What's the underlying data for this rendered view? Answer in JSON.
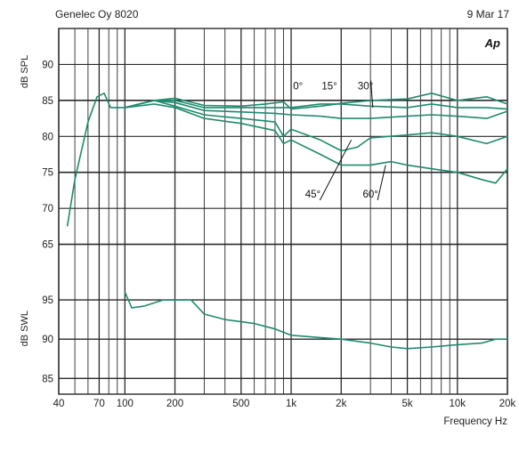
{
  "header": {
    "left": "Genelec Oy 8020",
    "right": "9 Mar 17",
    "logo": "Ap"
  },
  "colors": {
    "curve": "#1f8a6e",
    "grid": "#2a2a2a",
    "paper": "#ffffff"
  },
  "chart_data": {
    "type": "line",
    "xlabel": "Frequency Hz",
    "x_scale": "log",
    "xlim": [
      40,
      20000
    ],
    "x_ticks": [
      {
        "v": 40,
        "label": "40"
      },
      {
        "v": 70,
        "label": "70"
      },
      {
        "v": 100,
        "label": "100"
      },
      {
        "v": 200,
        "label": "200"
      },
      {
        "v": 500,
        "label": "500"
      },
      {
        "v": 1000,
        "label": "1k"
      },
      {
        "v": 2000,
        "label": "2k"
      },
      {
        "v": 5000,
        "label": "5k"
      },
      {
        "v": 10000,
        "label": "10k"
      },
      {
        "v": 20000,
        "label": "20k"
      }
    ],
    "grid_freqs": [
      40,
      50,
      60,
      70,
      80,
      90,
      100,
      200,
      300,
      400,
      500,
      600,
      700,
      800,
      900,
      1000,
      2000,
      3000,
      4000,
      5000,
      6000,
      7000,
      8000,
      9000,
      10000,
      20000
    ],
    "spl": {
      "ylabel": "dB SPL",
      "ylim": [
        60,
        95
      ],
      "y_ticks": [
        90,
        85,
        80,
        75,
        70,
        65
      ],
      "series": [
        {
          "name": "0°",
          "points": [
            [
              45,
              67.5
            ],
            [
              50,
              74
            ],
            [
              60,
              82
            ],
            [
              68,
              85.5
            ],
            [
              75,
              86
            ],
            [
              82,
              84
            ],
            [
              100,
              84
            ],
            [
              150,
              85
            ],
            [
              200,
              85.3
            ],
            [
              300,
              84.3
            ],
            [
              500,
              84.2
            ],
            [
              700,
              84.5
            ],
            [
              900,
              84.8
            ],
            [
              1000,
              83.8
            ],
            [
              1500,
              84.2
            ],
            [
              2000,
              84.6
            ],
            [
              3000,
              85
            ],
            [
              5000,
              85.2
            ],
            [
              7000,
              86
            ],
            [
              10000,
              85
            ],
            [
              15000,
              85.5
            ],
            [
              20000,
              84.5
            ]
          ]
        },
        {
          "name": "15°",
          "points": [
            [
              100,
              84
            ],
            [
              150,
              85
            ],
            [
              200,
              85
            ],
            [
              300,
              84
            ],
            [
              500,
              84
            ],
            [
              800,
              84
            ],
            [
              1000,
              84
            ],
            [
              1500,
              84.5
            ],
            [
              2000,
              84.5
            ],
            [
              3000,
              84.2
            ],
            [
              5000,
              84
            ],
            [
              7000,
              84.5
            ],
            [
              10000,
              84
            ],
            [
              15000,
              84
            ],
            [
              20000,
              83.8
            ]
          ]
        },
        {
          "name": "30°",
          "points": [
            [
              100,
              84
            ],
            [
              150,
              85
            ],
            [
              200,
              84.7
            ],
            [
              300,
              83.6
            ],
            [
              500,
              83.4
            ],
            [
              800,
              83.2
            ],
            [
              1000,
              83
            ],
            [
              1500,
              82.8
            ],
            [
              2000,
              82.5
            ],
            [
              3000,
              82.5
            ],
            [
              5000,
              82.8
            ],
            [
              7000,
              83
            ],
            [
              10000,
              82.8
            ],
            [
              15000,
              82.5
            ],
            [
              20000,
              83.5
            ]
          ]
        },
        {
          "name": "45°",
          "points": [
            [
              100,
              84
            ],
            [
              150,
              85
            ],
            [
              200,
              84.2
            ],
            [
              300,
              83
            ],
            [
              500,
              82.5
            ],
            [
              800,
              82
            ],
            [
              900,
              80
            ],
            [
              1000,
              81
            ],
            [
              1500,
              79.5
            ],
            [
              2000,
              78
            ],
            [
              2500,
              78.5
            ],
            [
              3000,
              79.8
            ],
            [
              5000,
              80.2
            ],
            [
              7000,
              80.5
            ],
            [
              10000,
              80
            ],
            [
              15000,
              79
            ],
            [
              20000,
              80
            ]
          ]
        },
        {
          "name": "60°",
          "points": [
            [
              100,
              84
            ],
            [
              150,
              84.5
            ],
            [
              200,
              84
            ],
            [
              300,
              82.5
            ],
            [
              500,
              81.8
            ],
            [
              800,
              80.8
            ],
            [
              900,
              79
            ],
            [
              1000,
              79.5
            ],
            [
              1500,
              77.5
            ],
            [
              2000,
              76
            ],
            [
              3000,
              76
            ],
            [
              4000,
              76.5
            ],
            [
              5000,
              76
            ],
            [
              7000,
              75.5
            ],
            [
              10000,
              75
            ],
            [
              14000,
              74
            ],
            [
              17000,
              73.5
            ],
            [
              20000,
              75.5
            ]
          ]
        }
      ],
      "annotations": [
        {
          "text": "0°",
          "label_at": [
            1100,
            86.5
          ]
        },
        {
          "text": "15°",
          "label_at": [
            1700,
            86.5
          ]
        },
        {
          "text": "30°",
          "label_at": [
            2800,
            86.5
          ],
          "leader_to": [
            3100,
            84
          ]
        },
        {
          "text": "45°",
          "label_at": [
            1350,
            71.5
          ],
          "leader_to": [
            2300,
            79.5
          ]
        },
        {
          "text": "60°",
          "label_at": [
            3000,
            71.5
          ],
          "leader_to": [
            3700,
            76
          ]
        }
      ]
    },
    "swl": {
      "ylabel": "dB SWL",
      "ylim": [
        83,
        97.5
      ],
      "y_ticks": [
        95,
        90,
        85
      ],
      "series": [
        {
          "name": "",
          "points": [
            [
              100,
              96
            ],
            [
              110,
              94
            ],
            [
              130,
              94.2
            ],
            [
              170,
              95
            ],
            [
              250,
              95
            ],
            [
              300,
              93.2
            ],
            [
              400,
              92.5
            ],
            [
              600,
              92
            ],
            [
              800,
              91.3
            ],
            [
              1000,
              90.5
            ],
            [
              1500,
              90.2
            ],
            [
              2000,
              90
            ],
            [
              3000,
              89.5
            ],
            [
              4000,
              89
            ],
            [
              5000,
              88.8
            ],
            [
              7000,
              89
            ],
            [
              10000,
              89.3
            ],
            [
              14000,
              89.5
            ],
            [
              17000,
              90
            ],
            [
              20000,
              90
            ]
          ]
        }
      ]
    }
  }
}
